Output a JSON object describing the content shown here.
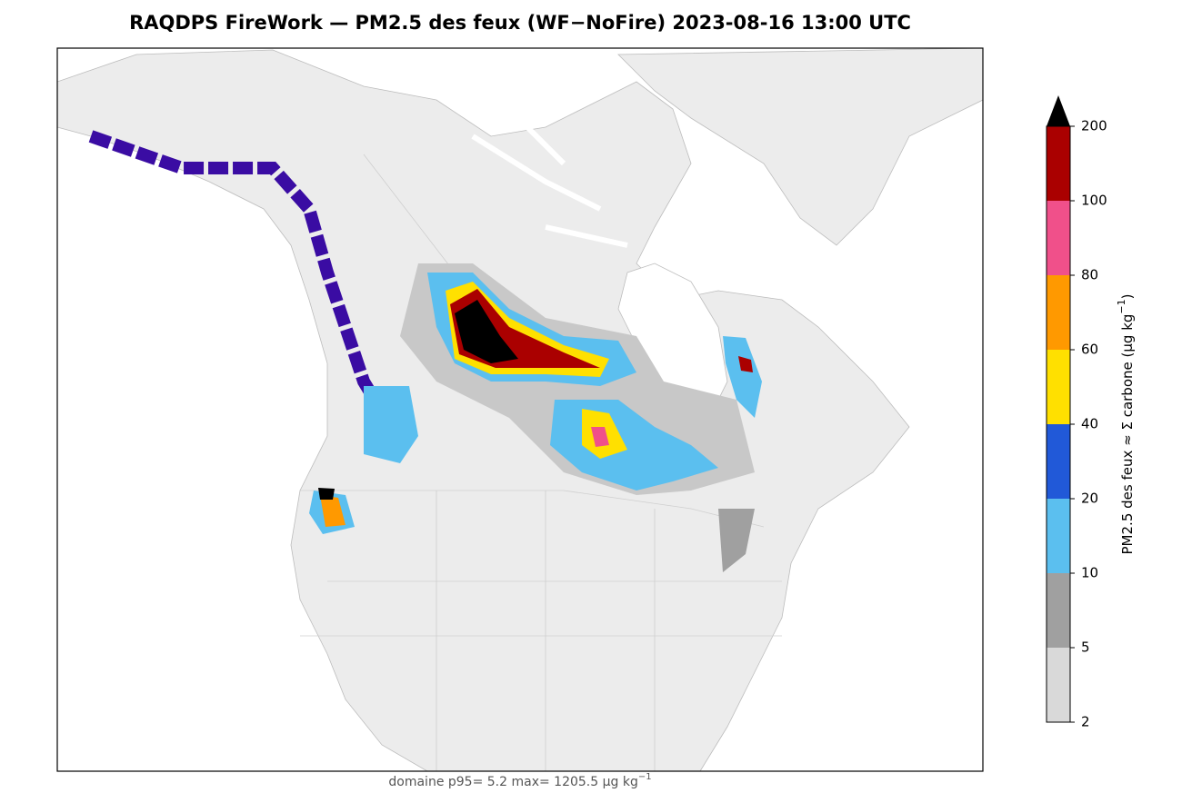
{
  "title": "RAQDPS FireWork — PM2.5 des feux (WF−NoFire)   2023-08-16  13:00 UTC",
  "colorbar": {
    "levels": [
      2,
      5,
      10,
      20,
      40,
      60,
      80,
      100,
      200
    ],
    "colors": [
      "#d9d9d9",
      "#a0a0a0",
      "#5bbfef",
      "#2159d8",
      "#ffe000",
      "#ff9900",
      "#f0508a",
      "#aa0000"
    ],
    "extend_color": "#000000",
    "label": {
      "before": "PM2.5 des feux ≈ Σ carbone (µg kg",
      "exponent": "−1",
      "after": ")"
    }
  },
  "footer": {
    "text": "domaine  p95=   5.2   max= 1205.5 µg kg",
    "exponent": "−1"
  }
}
